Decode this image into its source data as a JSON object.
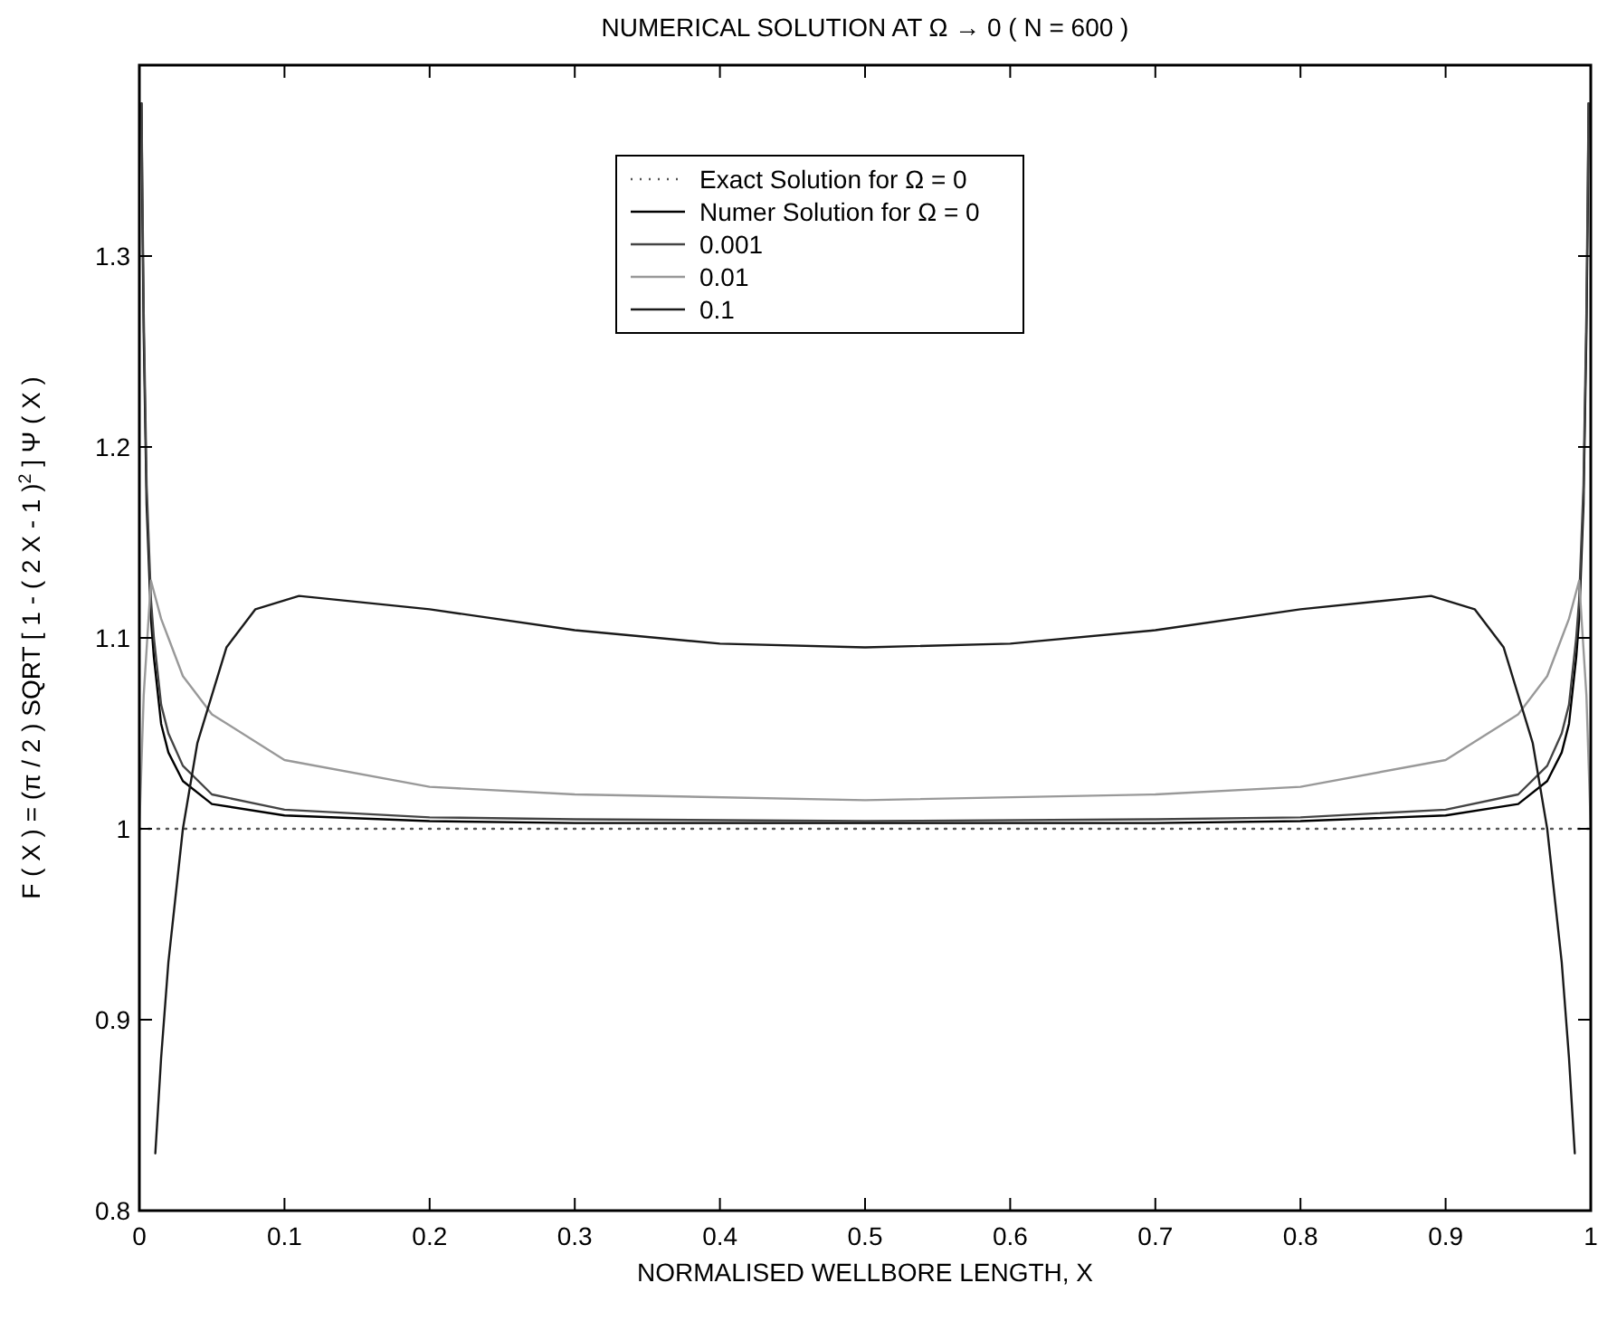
{
  "chart_data": {
    "type": "line",
    "title": "NUMERICAL SOLUTION AT Ω → 0  ( N = 600 )",
    "xlabel": "NORMALISED WELLBORE LENGTH, X",
    "ylabel": "F ( X ) = (π / 2 ) SQRT [ 1 - ( 2 X - 1 )$^{2}$ ] Ψ ( X )",
    "xlim": [
      0,
      1
    ],
    "ylim": [
      0.8,
      1.4
    ],
    "xticks": [
      0,
      0.1,
      0.2,
      0.3,
      0.4,
      0.5,
      0.6,
      0.7,
      0.8,
      0.9,
      1
    ],
    "yticks": [
      0.8,
      0.9,
      1,
      1.1,
      1.2,
      1.3
    ],
    "legend": "top",
    "marker": "none",
    "grid": false,
    "series": [
      {
        "name": "Exact Solution for Ω = 0",
        "color": "#555555",
        "line_style": "dotted",
        "x": [
          0,
          1
        ],
        "values": [
          1,
          1
        ]
      },
      {
        "name": "Numer Solution for Ω = 0",
        "color": "#000000",
        "x": [
          0.0015,
          0.002,
          0.003,
          0.005,
          0.008,
          0.01,
          0.015,
          0.02,
          0.03,
          0.05,
          0.1,
          0.2,
          0.3,
          0.5,
          0.7,
          0.8,
          0.9,
          0.95,
          0.97,
          0.98,
          0.985,
          0.99,
          0.992,
          0.995,
          0.997,
          0.998,
          0.9985
        ],
        "values": [
          1.38,
          1.33,
          1.26,
          1.17,
          1.11,
          1.09,
          1.055,
          1.04,
          1.025,
          1.013,
          1.007,
          1.004,
          1.003,
          1.003,
          1.003,
          1.004,
          1.007,
          1.013,
          1.025,
          1.04,
          1.055,
          1.09,
          1.11,
          1.17,
          1.26,
          1.33,
          1.38
        ]
      },
      {
        "name": "0.001",
        "color": "#444444",
        "x": [
          0.0015,
          0.002,
          0.003,
          0.005,
          0.008,
          0.01,
          0.015,
          0.02,
          0.03,
          0.05,
          0.1,
          0.2,
          0.3,
          0.5,
          0.7,
          0.8,
          0.9,
          0.95,
          0.97,
          0.98,
          0.985,
          0.99,
          0.992,
          0.995,
          0.997,
          0.998,
          0.9985
        ],
        "values": [
          1.38,
          1.34,
          1.27,
          1.18,
          1.12,
          1.1,
          1.065,
          1.05,
          1.033,
          1.018,
          1.01,
          1.006,
          1.005,
          1.004,
          1.005,
          1.006,
          1.01,
          1.018,
          1.033,
          1.05,
          1.065,
          1.1,
          1.12,
          1.18,
          1.27,
          1.34,
          1.38
        ]
      },
      {
        "name": "0.01",
        "color": "#999999",
        "x": [
          0,
          0.003,
          0.008,
          0.015,
          0.02,
          0.03,
          0.05,
          0.1,
          0.2,
          0.3,
          0.5,
          0.7,
          0.8,
          0.9,
          0.95,
          0.97,
          0.98,
          0.985,
          0.992,
          0.997,
          1
        ],
        "values": [
          1,
          1.07,
          1.13,
          1.11,
          1.1,
          1.08,
          1.06,
          1.036,
          1.022,
          1.018,
          1.015,
          1.018,
          1.022,
          1.036,
          1.06,
          1.08,
          1.1,
          1.11,
          1.13,
          1.07,
          1
        ]
      },
      {
        "name": "0.1",
        "color": "#1a1a1a",
        "x": [
          0.011,
          0.015,
          0.02,
          0.03,
          0.04,
          0.06,
          0.08,
          0.11,
          0.2,
          0.3,
          0.4,
          0.5,
          0.6,
          0.7,
          0.8,
          0.89,
          0.92,
          0.94,
          0.96,
          0.97,
          0.98,
          0.985,
          0.989
        ],
        "values": [
          0.83,
          0.88,
          0.93,
          1,
          1.045,
          1.095,
          1.115,
          1.122,
          1.115,
          1.104,
          1.097,
          1.095,
          1.097,
          1.104,
          1.115,
          1.122,
          1.115,
          1.095,
          1.045,
          1,
          0.93,
          0.88,
          0.83
        ]
      }
    ]
  }
}
